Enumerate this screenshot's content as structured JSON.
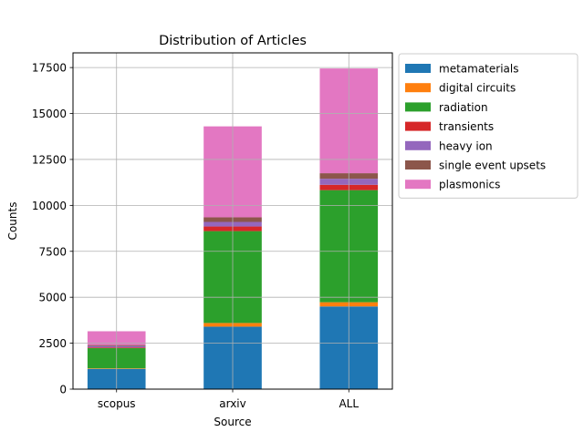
{
  "chart_data": {
    "type": "bar",
    "stacked": true,
    "title": "Distribution of Articles",
    "xlabel": "Source",
    "ylabel": "Counts",
    "categories": [
      "scopus",
      "arxiv",
      "ALL"
    ],
    "ylim": [
      0,
      18300
    ],
    "yticks": [
      0,
      2500,
      5000,
      7500,
      10000,
      12500,
      15000,
      17500
    ],
    "ytick_labels": [
      "0",
      "2500",
      "5000",
      "7500",
      "10000",
      "12500",
      "15000",
      "17500"
    ],
    "grid": true,
    "legend_position": "outside-top-right",
    "series": [
      {
        "name": "metamaterials",
        "color": "#1f77b4",
        "values": [
          1100,
          3400,
          4500
        ]
      },
      {
        "name": "digital circuits",
        "color": "#ff7f0e",
        "values": [
          30,
          200,
          230
        ]
      },
      {
        "name": "radiation",
        "color": "#2ca02c",
        "values": [
          1100,
          5000,
          6100
        ]
      },
      {
        "name": "transients",
        "color": "#d62728",
        "values": [
          40,
          250,
          290
        ]
      },
      {
        "name": "heavy ion",
        "color": "#9467bd",
        "values": [
          80,
          250,
          330
        ]
      },
      {
        "name": "single event upsets",
        "color": "#8c564b",
        "values": [
          50,
          250,
          300
        ]
      },
      {
        "name": "plasmonics",
        "color": "#e377c2",
        "values": [
          750,
          4950,
          5700
        ]
      }
    ]
  }
}
